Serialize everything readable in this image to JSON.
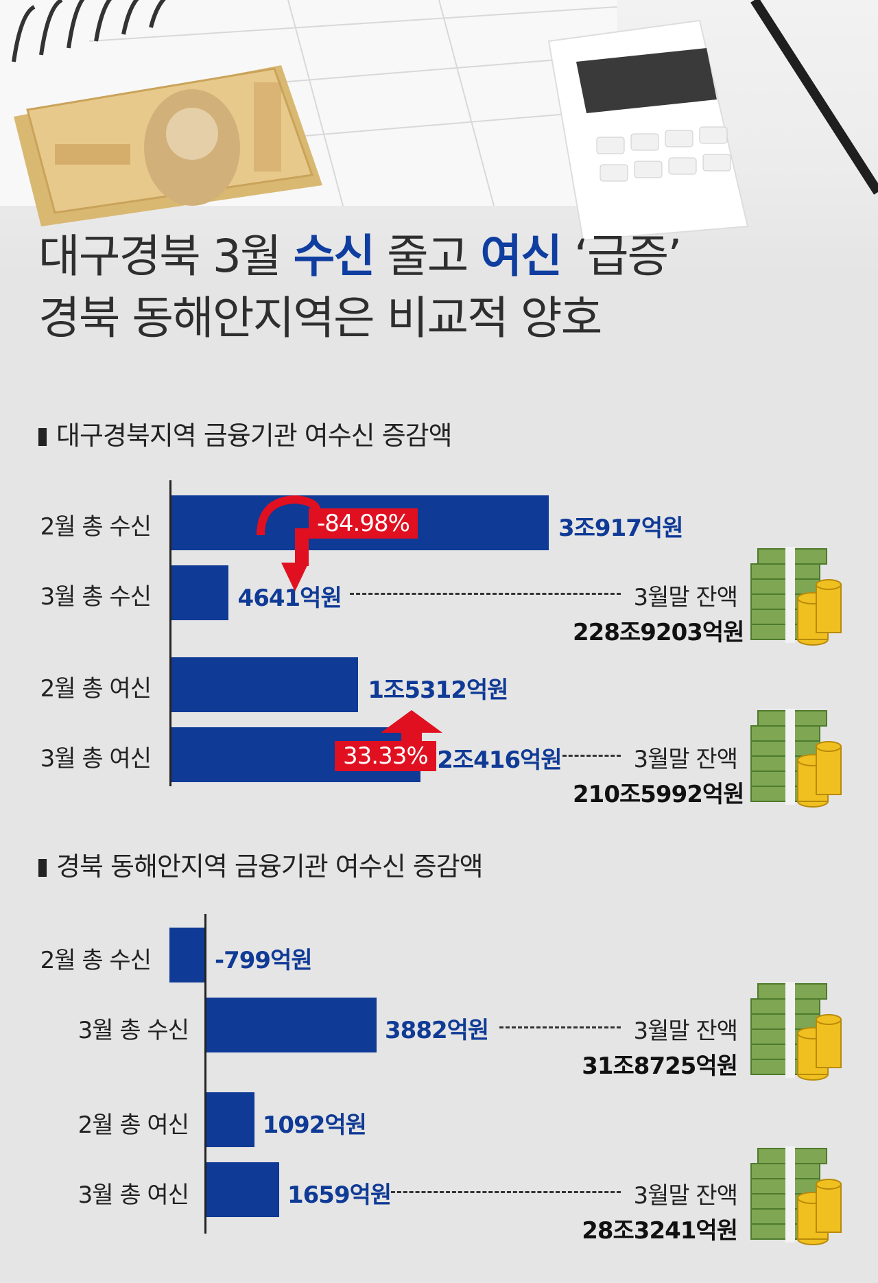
{
  "headline": {
    "line1": {
      "before": "대구경북 3월 ",
      "hl1": "수신",
      "middle": " 줄고 ",
      "hl2": "여신",
      "after": " ‘급증’"
    },
    "line2": "경북 동해안지역은 비교적 양호"
  },
  "accent_color": "#0f3a96",
  "alert_color": "#e01020",
  "icons": [
    "money-stack-icon",
    "coin-stack-icon"
  ],
  "section1": {
    "title": "대구경북지역 금융기관 여수신 증감액",
    "rows": [
      {
        "label": "2월 총 수신",
        "value_text": "3조917억원"
      },
      {
        "label": "3월 총 수신",
        "value_text": "4641억원"
      },
      {
        "label": "2월 총 여신",
        "value_text": "1조5312억원"
      },
      {
        "label": "3월 총 여신",
        "value_text": "2조416억원"
      }
    ],
    "change_down": "-84.98%",
    "change_up": "33.33%",
    "balances": [
      {
        "label": "3월말 잔액",
        "value": "228조9203억원"
      },
      {
        "label": "3월말 잔액",
        "value": "210조5992억원"
      }
    ]
  },
  "section2": {
    "title": "경북 동해안지역 금융기관 여수신 증감액",
    "rows": [
      {
        "label": "2월 총 수신",
        "value_text": "-799억원"
      },
      {
        "label": "3월 총 수신",
        "value_text": "3882억원"
      },
      {
        "label": "2월 총 여신",
        "value_text": "1092억원"
      },
      {
        "label": "3월 총 여신",
        "value_text": "1659억원"
      }
    ],
    "balances": [
      {
        "label": "3월말 잔액",
        "value": "31조8725억원"
      },
      {
        "label": "3월말 잔액",
        "value": "28조3241억원"
      }
    ]
  },
  "chart_data": [
    {
      "type": "bar",
      "title": "대구경북지역 금융기관 여수신 증감액",
      "categories": [
        "2월 총 수신",
        "3월 총 수신",
        "2월 총 여신",
        "3월 총 여신"
      ],
      "values": [
        30917,
        4641,
        15312,
        20416
      ],
      "unit": "억원"
    },
    {
      "type": "bar",
      "title": "경북 동해안지역 금융기관 여수신 증감액",
      "categories": [
        "2월 총 수신",
        "3월 총 수신",
        "2월 총 여신",
        "3월 총 여신"
      ],
      "values": [
        -799,
        3882,
        1092,
        1659
      ],
      "unit": "억원"
    }
  ]
}
